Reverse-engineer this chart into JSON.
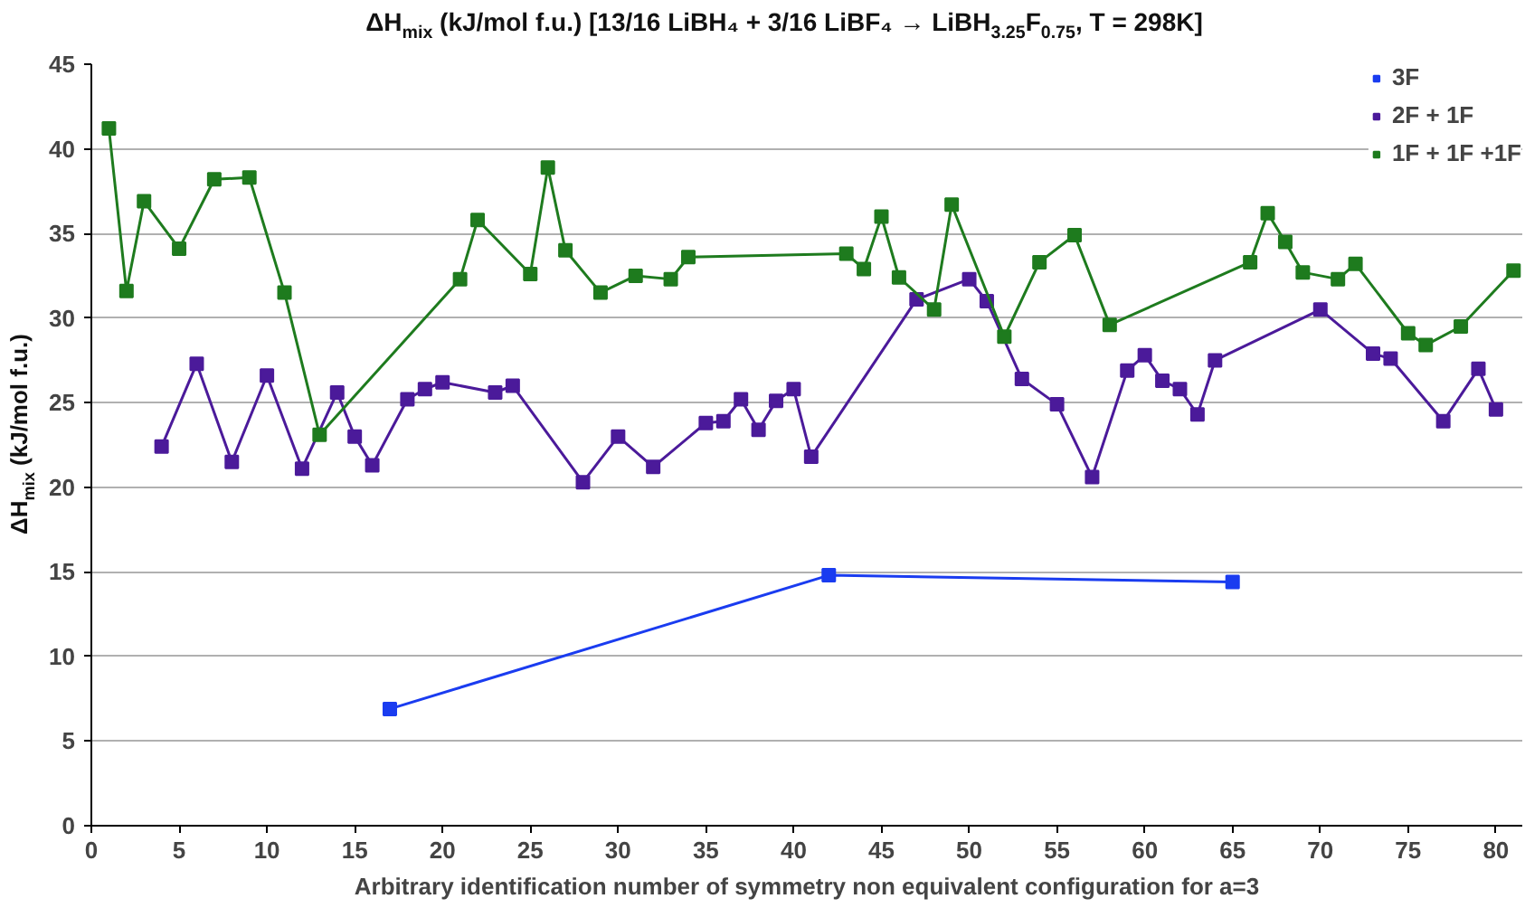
{
  "chart_data": {
    "type": "line",
    "title": "ΔH$_{mix}$ (kJ/mol f.u.) [13/16 LiBH₄ + 3/16 LiBF₄ → LiBH$_{3.25}$F$_{0.75}$, T = 298K]",
    "xlabel": "Arbitrary identification number of symmetry non equivalent configuration for a=3",
    "ylabel": "ΔH$_{mix}$ (kJ/mol f.u.)",
    "xlim": [
      0,
      81.5
    ],
    "xticks": [
      0,
      5,
      10,
      15,
      20,
      25,
      30,
      35,
      40,
      45,
      50,
      55,
      60,
      65,
      70,
      75,
      80
    ],
    "ylim": [
      0,
      45
    ],
    "yticks": [
      0,
      5,
      10,
      15,
      20,
      25,
      30,
      35,
      40,
      45
    ],
    "grid": "y",
    "legend": "top right",
    "marker": "square",
    "line_style": "solid",
    "series": [
      {
        "name": "3F",
        "color": "#1a3cf0",
        "x": [
          17,
          42,
          65
        ],
        "values": [
          6.9,
          14.8,
          14.4
        ]
      },
      {
        "name": "2F + 1F",
        "color": "#4b1a9a",
        "x": [
          4,
          6,
          8,
          10,
          12,
          14,
          15,
          16,
          18,
          19,
          20,
          23,
          24,
          28,
          30,
          32,
          35,
          36,
          37,
          38,
          39,
          40,
          41,
          47,
          50,
          51,
          53,
          55,
          57,
          59,
          60,
          61,
          62,
          63,
          64,
          70,
          73,
          74,
          77,
          79,
          80
        ],
        "values": [
          22.4,
          27.3,
          21.5,
          26.6,
          21.1,
          25.6,
          23.0,
          21.3,
          25.2,
          25.8,
          26.2,
          25.6,
          26.0,
          20.3,
          23.0,
          21.2,
          23.8,
          23.9,
          25.2,
          23.4,
          25.1,
          25.8,
          21.8,
          31.1,
          32.3,
          31.0,
          26.4,
          24.9,
          20.6,
          26.9,
          27.8,
          26.3,
          25.8,
          24.3,
          27.5,
          30.5,
          27.9,
          27.6,
          23.9,
          27.0,
          24.6
        ]
      },
      {
        "name": "1F + 1F +1F",
        "color": "#1e7b1e",
        "x": [
          1,
          2,
          3,
          5,
          7,
          9,
          11,
          13,
          21,
          22,
          25,
          26,
          27,
          29,
          31,
          33,
          34,
          43,
          44,
          45,
          46,
          48,
          49,
          52,
          54,
          56,
          58,
          66,
          67,
          68,
          69,
          71,
          72,
          75,
          76,
          78,
          81
        ],
        "values": [
          41.2,
          31.6,
          36.9,
          34.1,
          38.2,
          38.3,
          31.5,
          23.1,
          32.3,
          35.8,
          32.6,
          38.9,
          34.0,
          31.5,
          32.5,
          32.3,
          33.6,
          33.8,
          32.9,
          36.0,
          32.4,
          30.5,
          36.7,
          28.9,
          33.3,
          34.9,
          29.6,
          33.3,
          36.2,
          34.5,
          32.7,
          32.3,
          33.2,
          29.1,
          28.4,
          29.5,
          32.8
        ]
      }
    ]
  }
}
